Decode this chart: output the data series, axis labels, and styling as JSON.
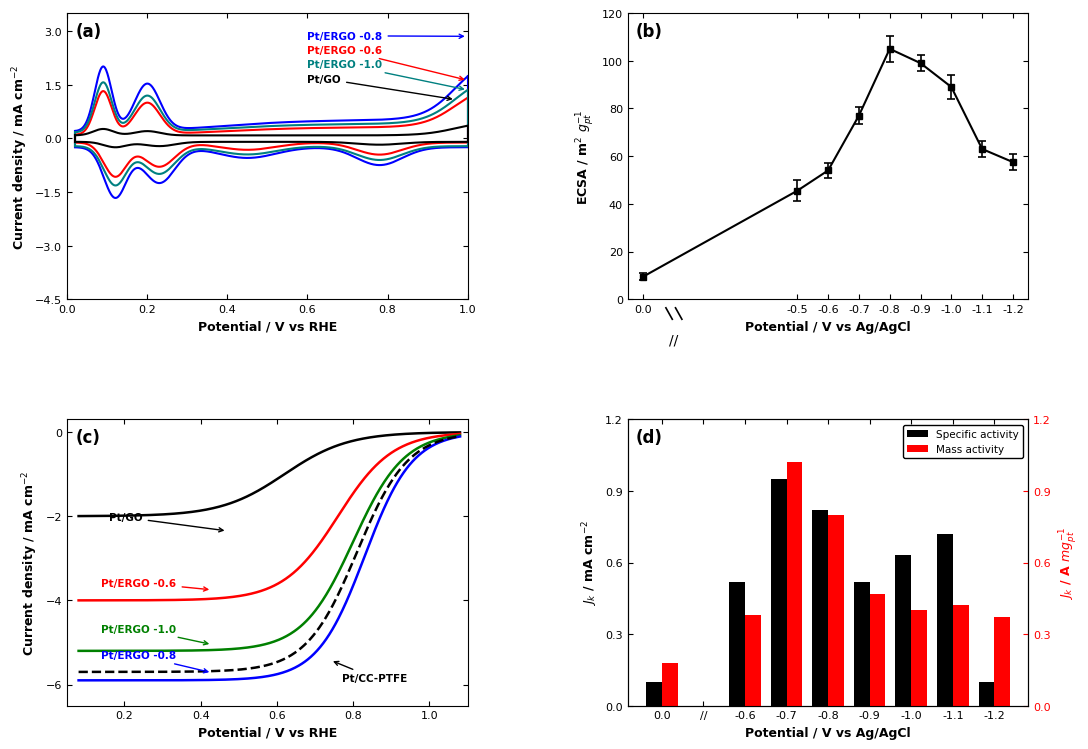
{
  "panel_a": {
    "xlabel": "Potential / V vs RHE",
    "ylim": [
      -4.5,
      3.5
    ],
    "yticks": [
      -4.5,
      -3.0,
      -1.5,
      0.0,
      1.5,
      3.0
    ],
    "xticks": [
      0.0,
      0.2,
      0.4,
      0.6,
      0.8,
      1.0
    ],
    "labels": [
      "Pt/ERGO -0.8",
      "Pt/ERGO -0.6",
      "Pt/ERGO -1.0",
      "Pt/GO"
    ],
    "colors": [
      "blue",
      "red",
      "#008080",
      "black"
    ]
  },
  "panel_b": {
    "xlabel": "Potential / V vs Ag/AgCl",
    "ylabel": "ECSA / m$^2$ $g_{pt}^{-1}$",
    "ylim": [
      0,
      120
    ],
    "yticks": [
      0,
      20,
      40,
      60,
      80,
      100,
      120
    ],
    "x_data": [
      0.0,
      -0.5,
      -0.6,
      -0.7,
      -0.8,
      -0.9,
      -1.0,
      -1.1,
      -1.2
    ],
    "y_data": [
      9.5,
      45.5,
      54.0,
      77.0,
      105.0,
      99.0,
      89.0,
      63.0,
      57.5
    ],
    "y_err": [
      1.5,
      4.5,
      3.0,
      3.5,
      5.5,
      3.5,
      5.0,
      3.5,
      3.5
    ]
  },
  "panel_c": {
    "xlabel": "Potential / V vs RHE",
    "labels": [
      "Pt/GO",
      "Pt/ERGO -0.6",
      "Pt/ERGO -1.0",
      "Pt/ERGO -0.8",
      "Pt/CC-PTFE"
    ],
    "colors": [
      "black",
      "red",
      "green",
      "blue",
      "black"
    ],
    "E_half": [
      0.62,
      0.76,
      0.8,
      0.83,
      0.81
    ],
    "j_lim": [
      -2.0,
      -4.0,
      -5.2,
      -5.9,
      -5.7
    ],
    "sharpness": [
      12,
      14,
      15,
      16,
      15
    ]
  },
  "panel_d": {
    "xlabel": "Potential / V vs Ag/AgCl",
    "ylabel_left": "$J_k$ / mA cm$^{-2}$",
    "ylabel_right": "$J_k$ / A $mg_{pt}^{-1}$",
    "categories": [
      "0.0",
      "//",
      "-0.6",
      "-0.7",
      "-0.8",
      "-0.9",
      "-1.0",
      "-1.1",
      "-1.2"
    ],
    "x_positions": [
      0,
      1,
      2,
      3,
      4,
      5,
      6,
      7,
      8
    ],
    "specific_activity": [
      0.1,
      0.0,
      0.52,
      0.95,
      0.82,
      0.52,
      0.63,
      0.72,
      0.1
    ],
    "mass_activity": [
      0.18,
      0.0,
      0.38,
      1.02,
      0.8,
      0.47,
      0.4,
      0.42,
      0.37
    ],
    "ylim": [
      0,
      1.2
    ],
    "yticks": [
      0.0,
      0.3,
      0.6,
      0.9,
      1.2
    ],
    "color_specific": "black",
    "color_mass": "red",
    "legend_labels": [
      "Specific activity",
      "Mass activity"
    ]
  }
}
